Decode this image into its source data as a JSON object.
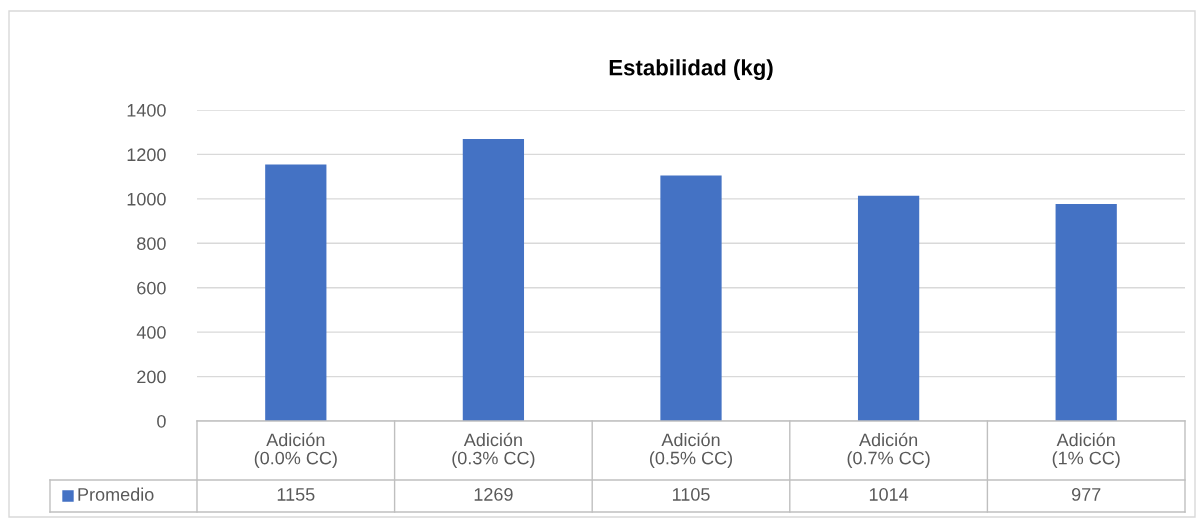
{
  "chart_data": {
    "type": "bar",
    "title": "Estabilidad (kg)",
    "categories": [
      "Adición\n(0.0% CC)",
      "Adición\n(0.3% CC)",
      "Adición\n(0.5% CC)",
      "Adición\n(0.7% CC)",
      "Adición\n(1% CC)"
    ],
    "series": [
      {
        "name": "Promedio",
        "color": "#4472c4",
        "values": [
          1155,
          1269,
          1105,
          1014,
          977
        ]
      }
    ],
    "ylim": [
      0,
      1400
    ],
    "yticks": [
      0,
      200,
      400,
      600,
      800,
      1000,
      1200,
      1400
    ],
    "grid": "y",
    "data_labels": true
  }
}
